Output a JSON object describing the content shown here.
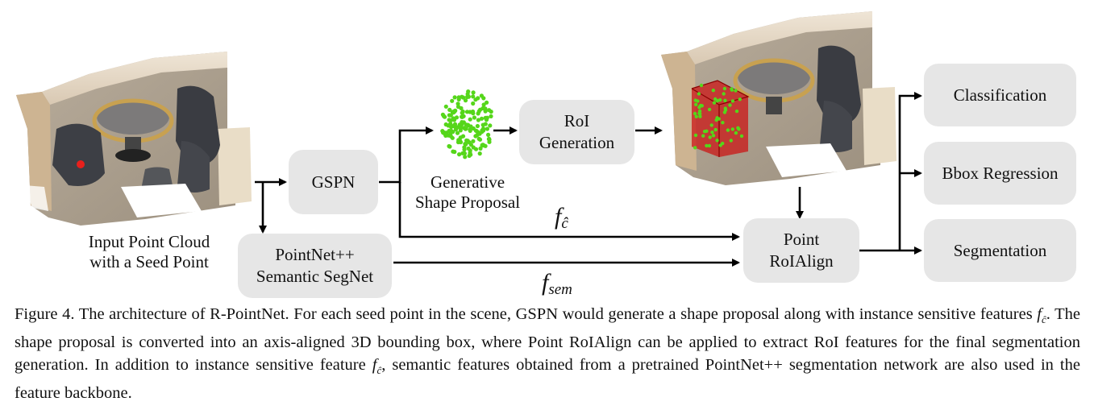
{
  "nodes": {
    "input_label_line1": "Input Point Cloud",
    "input_label_line2": "with a Seed Point",
    "gspn": "GSPN",
    "pointnet_line1": "PointNet++",
    "pointnet_line2": "Semantic SegNet",
    "gsp_line1": "Generative",
    "gsp_line2": "Shape Proposal",
    "roi_line1": "RoI",
    "roi_line2": "Generation",
    "align_line1": "Point",
    "align_line2": "RoIAlign",
    "classification": "Classification",
    "bbox": "Bbox Regression",
    "segmentation": "Segmentation"
  },
  "features": {
    "fc_symbol": "f",
    "fc_subscript": "ĉ",
    "fsem_symbol": "f",
    "fsem_subscript": "sem"
  },
  "caption": {
    "part1": "Figure 4. The architecture of R-PointNet. For each seed point in the scene, GSPN would generate a shape proposal along with instance sensitive features ",
    "part2": ". The shape proposal is converted into an axis-aligned 3D bounding box, where Point RoIAlign can be applied to extract RoI features for the final segmentation generation. In addition to instance sensitive feature ",
    "part3": ", semantic features obtained from a pretrained PointNet++ segmentation network are also used in the feature backbone.",
    "f_symbol": "f",
    "f_subscript": "ĉ"
  },
  "colors": {
    "box_fill": "#e6e6e6",
    "seed_point": "#e8201c",
    "proposal_points": "#55d61a",
    "bbox_red": "#cc1111"
  },
  "icons": [
    "arrow-icon",
    "point-cloud-scene-image",
    "shape-proposal-point-cloud",
    "room-with-bbox-image"
  ]
}
